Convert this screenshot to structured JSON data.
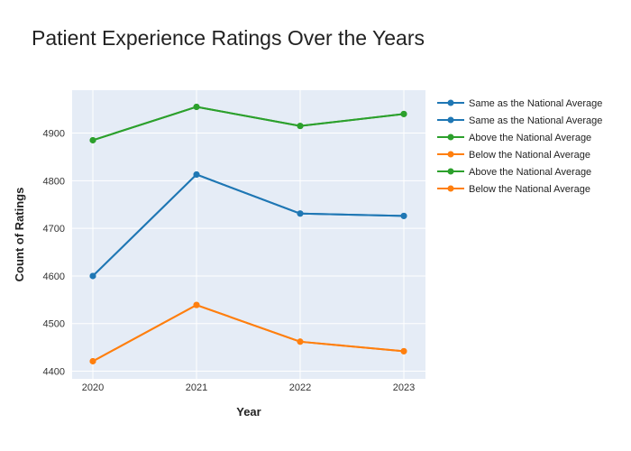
{
  "chart_data": {
    "type": "line",
    "title": "Patient Experience Ratings Over the Years",
    "xlabel": "Year",
    "ylabel": "Count of Ratings",
    "x": [
      "2020",
      "2021",
      "2022",
      "2023"
    ],
    "ylim": [
      4384,
      4990
    ],
    "yticks": [
      4400,
      4500,
      4600,
      4700,
      4800,
      4900
    ],
    "grid": true,
    "legend_position": "right",
    "colors": {
      "plot_background": "#E5ECF6",
      "grid": "#FFFFFF"
    },
    "series": [
      {
        "name": "Same as the National Average",
        "color": "#1F77B4",
        "values": [
          4600,
          4813,
          4731,
          4726
        ]
      },
      {
        "name": "Same as the National Average",
        "color": "#1F77B4",
        "values": [
          4600,
          4813,
          4731,
          4726
        ]
      },
      {
        "name": "Above the National Average",
        "color": "#2CA02C",
        "values": [
          4885,
          4955,
          4915,
          4940
        ]
      },
      {
        "name": "Below the National Average",
        "color": "#FF7F0E",
        "values": [
          4421,
          4539,
          4462,
          4442
        ]
      },
      {
        "name": "Above the National Average",
        "color": "#2CA02C",
        "values": [
          4885,
          4955,
          4915,
          4940
        ]
      },
      {
        "name": "Below the National Average",
        "color": "#FF7F0E",
        "values": [
          4421,
          4539,
          4462,
          4442
        ]
      }
    ]
  }
}
